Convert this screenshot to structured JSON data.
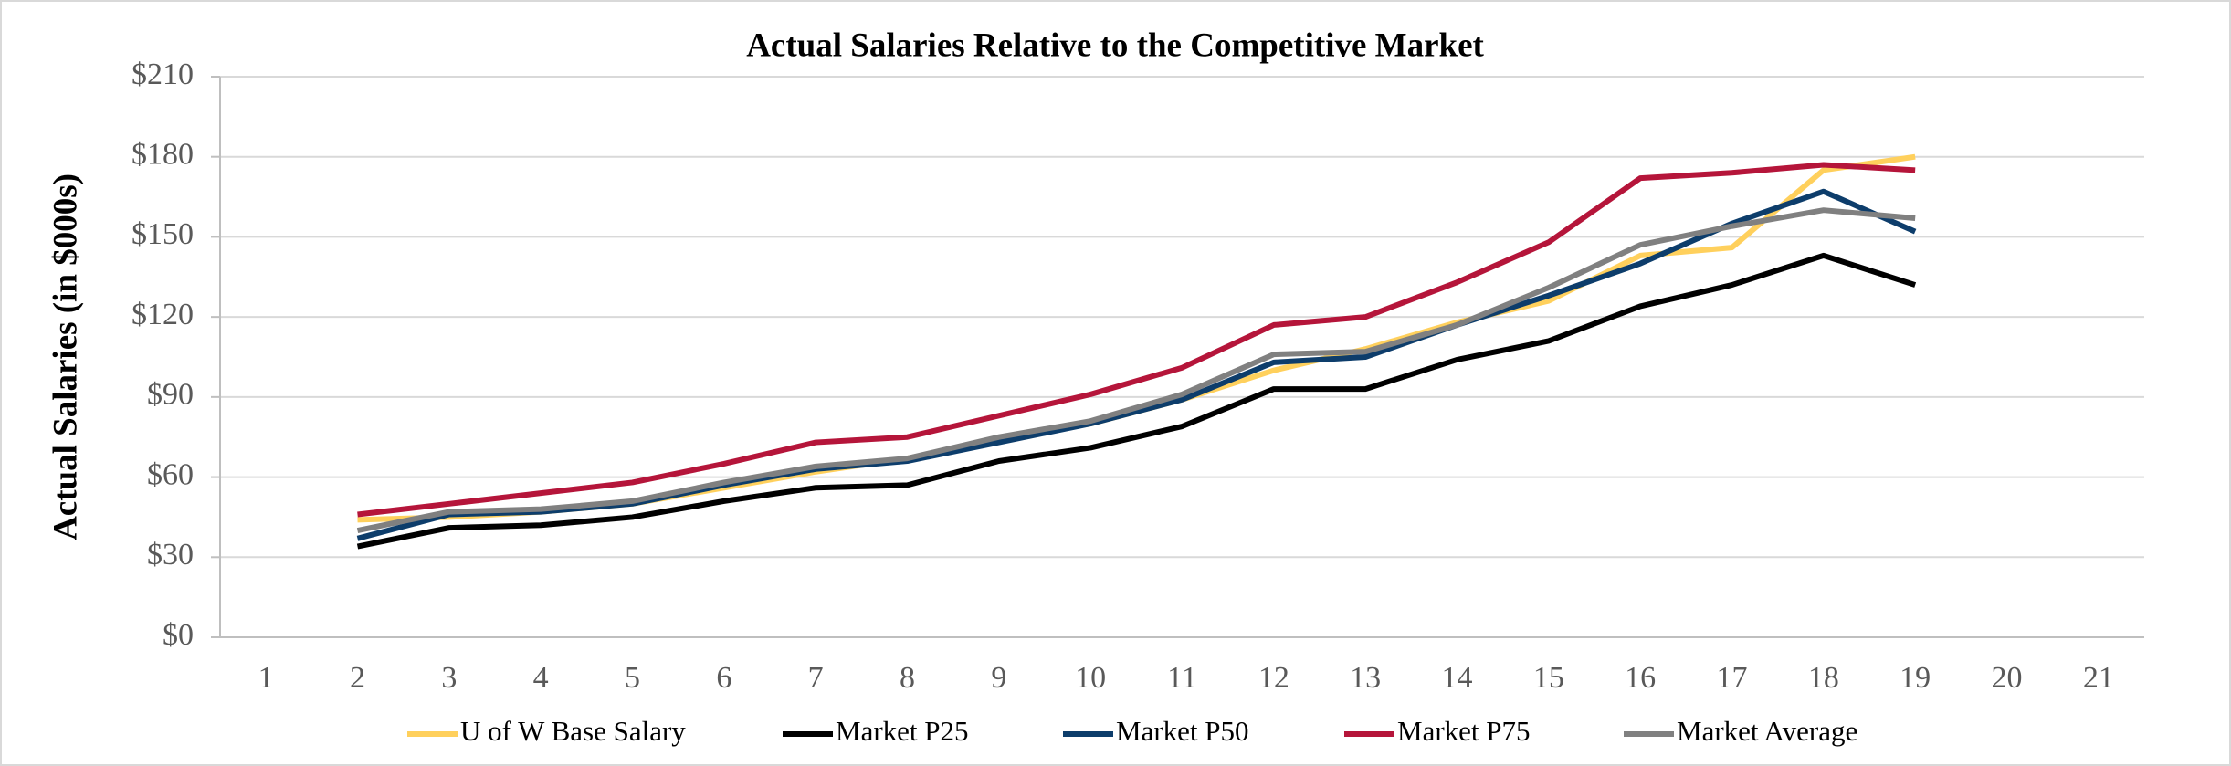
{
  "chart_data": {
    "type": "line",
    "title": "Actual Salaries Relative to the Competitive Market",
    "y_label": "Actual Salaries (in $000s)",
    "categories": [
      "1",
      "2",
      "3",
      "4",
      "5",
      "6",
      "7",
      "8",
      "9",
      "10",
      "11",
      "12",
      "13",
      "14",
      "15",
      "16",
      "17",
      "18",
      "19",
      "20",
      "21"
    ],
    "series": [
      {
        "name": "U of W Base Salary",
        "color": "#ffd05c",
        "values": [
          null,
          44,
          45,
          47,
          50,
          56,
          62,
          67,
          74,
          80,
          89,
          100,
          108,
          118,
          126,
          143,
          146,
          175,
          180,
          null,
          null
        ]
      },
      {
        "name": "Market P25",
        "color": "#000000",
        "values": [
          null,
          34,
          41,
          42,
          45,
          51,
          56,
          57,
          66,
          71,
          79,
          93,
          93,
          104,
          111,
          124,
          132,
          143,
          132,
          null,
          null
        ]
      },
      {
        "name": "Market P50",
        "color": "#0d3d6b",
        "values": [
          null,
          37,
          46,
          47,
          50,
          57,
          63,
          66,
          73,
          80,
          89,
          103,
          105,
          117,
          128,
          140,
          155,
          167,
          152,
          null,
          null
        ]
      },
      {
        "name": "Market P75",
        "color": "#b5153a",
        "values": [
          null,
          46,
          50,
          54,
          58,
          65,
          73,
          75,
          83,
          91,
          101,
          117,
          120,
          133,
          148,
          172,
          174,
          177,
          175,
          null,
          null
        ]
      },
      {
        "name": "Market Average",
        "color": "#808080",
        "values": [
          null,
          40,
          47,
          48,
          51,
          58,
          64,
          67,
          75,
          81,
          91,
          106,
          107,
          117,
          131,
          147,
          154,
          160,
          157,
          null,
          null
        ]
      }
    ],
    "ylim": [
      0,
      210
    ],
    "yticks": [
      {
        "value": 0,
        "label": "$0"
      },
      {
        "value": 30,
        "label": "$30"
      },
      {
        "value": 60,
        "label": "$60"
      },
      {
        "value": 90,
        "label": "$90"
      },
      {
        "value": 120,
        "label": "$120"
      },
      {
        "value": 150,
        "label": "$150"
      },
      {
        "value": 180,
        "label": "$180"
      },
      {
        "value": 210,
        "label": "$210"
      }
    ],
    "grid": true,
    "legend": "bottom"
  }
}
